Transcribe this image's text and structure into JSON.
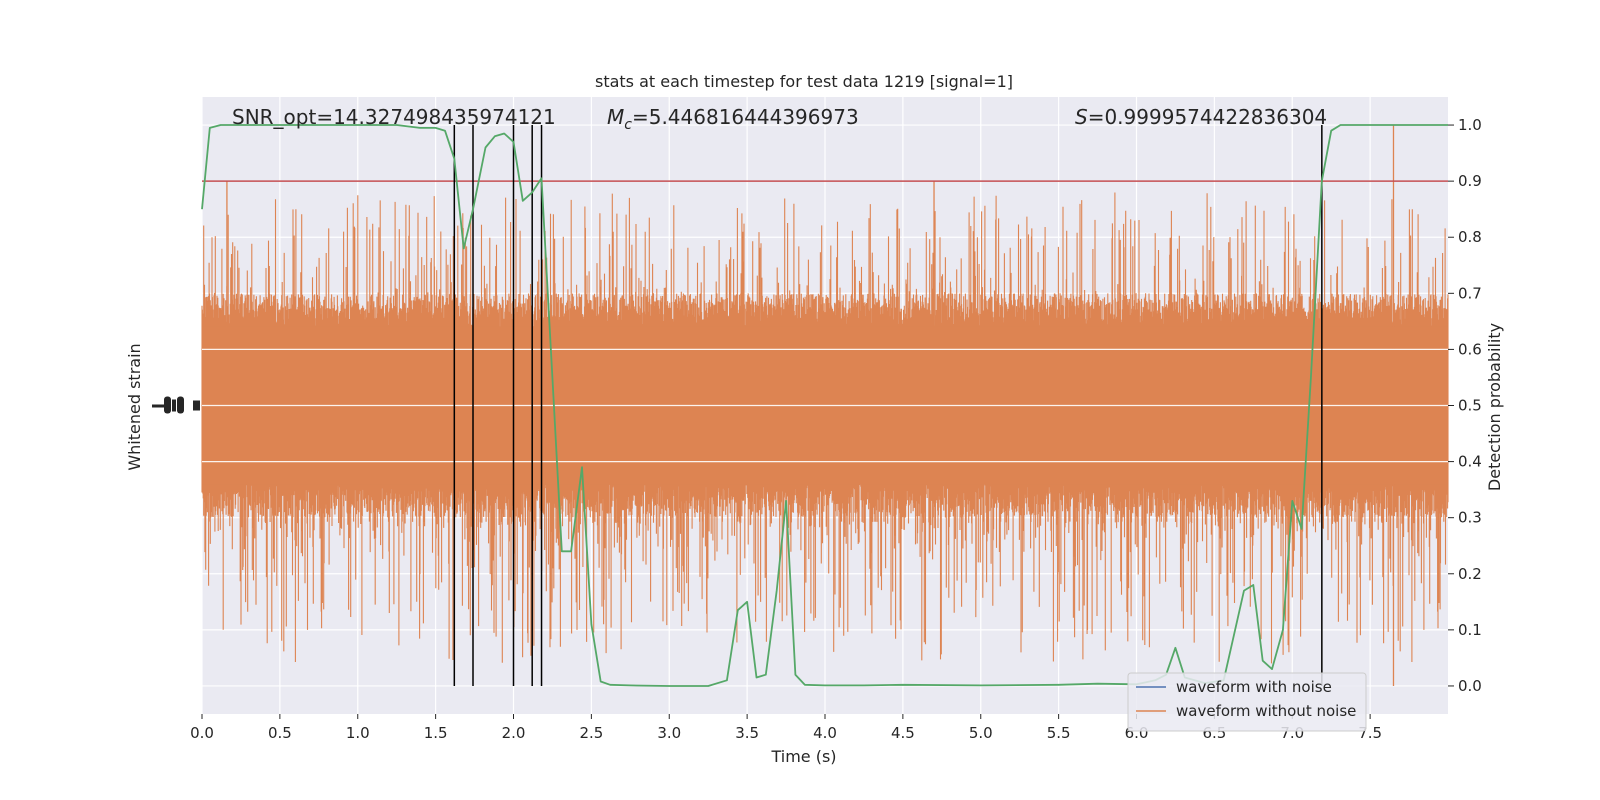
{
  "chart_data": {
    "type": "line",
    "title": "stats at each timestep for test data 1219 [signal=1]",
    "xlabel": "Time (s)",
    "ylabel_left": "Whitened strain",
    "ylabel_right": "Detection probability",
    "xlim": [
      0.0,
      8.0
    ],
    "ylim_right": [
      -0.05,
      1.05
    ],
    "x_ticks": [
      "0.0",
      "0.5",
      "1.0",
      "1.5",
      "2.0",
      "2.5",
      "3.0",
      "3.5",
      "4.0",
      "4.5",
      "5.0",
      "5.5",
      "6.0",
      "6.5",
      "7.0",
      "7.5"
    ],
    "right_ticks": [
      "0.0",
      "0.1",
      "0.2",
      "0.3",
      "0.4",
      "0.5",
      "0.6",
      "0.7",
      "0.8",
      "0.9",
      "1.0"
    ],
    "grid": true,
    "legend_position": "lower-right",
    "annotations": {
      "snr": "SNR_opt=14.327498435974121",
      "mc_symbol": "M",
      "mc_sub": "c",
      "mc_value": "=5.446816444396973",
      "s_symbol": "S",
      "s_value": "=0.9999574422836304"
    },
    "threshold": {
      "value": 0.9,
      "color": "#c44e52"
    },
    "vertical_lines_x": [
      1.62,
      1.74,
      2.0,
      2.12,
      2.18,
      7.19
    ],
    "series": [
      {
        "name": "waveform with noise",
        "color": "#4c72b0"
      },
      {
        "name": "waveform without noise",
        "color": "#dd8452"
      }
    ],
    "strain_band": {
      "center": 0.5,
      "dense_half_width": 0.2,
      "spike_up_max": 0.9,
      "spike_down_min": 0.0,
      "color": "#dd8452"
    },
    "detection_probability": {
      "color": "#55a868",
      "x": [
        0.0,
        0.05,
        0.12,
        0.25,
        0.5,
        0.75,
        1.0,
        1.25,
        1.4,
        1.5,
        1.56,
        1.62,
        1.68,
        1.74,
        1.82,
        1.88,
        1.94,
        2.0,
        2.06,
        2.12,
        2.18,
        2.25,
        2.31,
        2.37,
        2.44,
        2.5,
        2.56,
        2.62,
        2.75,
        3.0,
        3.25,
        3.37,
        3.44,
        3.5,
        3.56,
        3.62,
        3.69,
        3.75,
        3.81,
        3.87,
        4.0,
        4.25,
        4.5,
        5.0,
        5.5,
        5.75,
        6.0,
        6.12,
        6.19,
        6.25,
        6.31,
        6.44,
        6.56,
        6.69,
        6.75,
        6.81,
        6.87,
        6.94,
        7.0,
        7.06,
        7.12,
        7.19,
        7.25,
        7.31,
        7.5,
        7.75,
        8.0
      ],
      "y": [
        0.85,
        0.995,
        1.0,
        1.0,
        1.0,
        1.0,
        1.0,
        1.0,
        0.995,
        0.995,
        0.99,
        0.94,
        0.78,
        0.85,
        0.96,
        0.98,
        0.985,
        0.97,
        0.865,
        0.88,
        0.905,
        0.55,
        0.24,
        0.24,
        0.39,
        0.11,
        0.008,
        0.002,
        0.001,
        0.0,
        0.0,
        0.01,
        0.135,
        0.15,
        0.015,
        0.02,
        0.17,
        0.33,
        0.02,
        0.002,
        0.001,
        0.001,
        0.002,
        0.001,
        0.002,
        0.004,
        0.003,
        0.01,
        0.02,
        0.068,
        0.015,
        0.005,
        0.01,
        0.17,
        0.18,
        0.045,
        0.03,
        0.1,
        0.33,
        0.28,
        0.55,
        0.9,
        0.99,
        1.0,
        1.0,
        1.0,
        1.0
      ]
    }
  }
}
